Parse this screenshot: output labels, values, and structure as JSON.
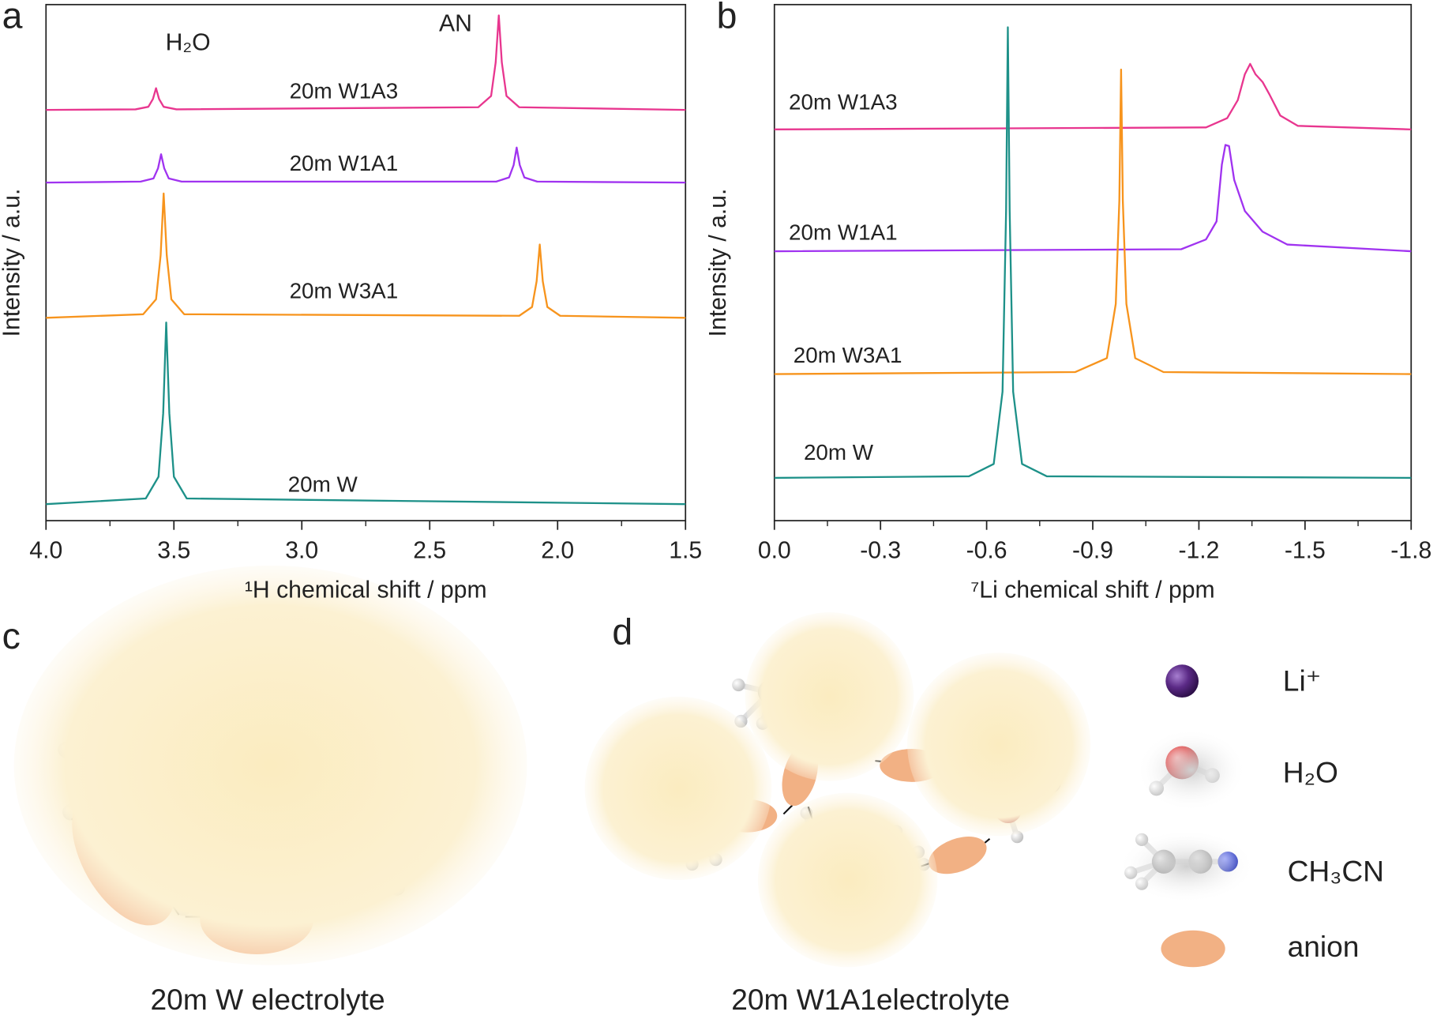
{
  "chart_data": [
    {
      "type": "line",
      "label": "a",
      "xlabel": "¹H chemical shift / ppm",
      "ylabel": "Intensity / a.u.",
      "xlim": [
        4.0,
        1.5
      ],
      "ylim": [
        0,
        100
      ],
      "xticks": [
        {
          "value": 4,
          "label": "4.0"
        },
        3.5,
        {
          "value": 3,
          "label": "3.0"
        },
        2.5,
        {
          "value": 2,
          "label": "2.0"
        },
        1.5
      ],
      "annotations": [
        "H₂O",
        "AN"
      ],
      "series": [
        {
          "name": "20m W1A3",
          "color": "#e8368f",
          "x": [
            4.0,
            3.65,
            3.6,
            3.582,
            3.57,
            3.558,
            3.54,
            3.49,
            2.31,
            2.26,
            2.242,
            2.23,
            2.218,
            2.2,
            2.15,
            1.5
          ],
          "values": [
            79.6,
            79.7,
            80.2,
            81.7,
            83.8,
            81.7,
            80.2,
            79.7,
            80.1,
            82.3,
            88.8,
            97.9,
            88.8,
            82.3,
            80.1,
            79.6
          ]
        },
        {
          "name": "20m W1A1",
          "color": "#a033f0",
          "x": [
            4.0,
            3.63,
            3.58,
            3.562,
            3.55,
            3.538,
            3.52,
            3.47,
            2.24,
            2.19,
            2.172,
            2.16,
            2.148,
            2.13,
            2.08,
            1.5
          ],
          "values": [
            65.5,
            65.7,
            66.3,
            68.3,
            71.0,
            68.3,
            66.3,
            65.7,
            65.7,
            66.5,
            68.9,
            72.3,
            68.9,
            66.5,
            65.7,
            65.5
          ]
        },
        {
          "name": "20m W3A1",
          "color": "#f7941d",
          "x": [
            4.0,
            3.62,
            3.57,
            3.552,
            3.54,
            3.528,
            3.51,
            3.46,
            2.15,
            2.1,
            2.082,
            2.07,
            2.058,
            2.04,
            1.99,
            1.5
          ],
          "values": [
            39.3,
            40.0,
            42.9,
            51.4,
            63.4,
            51.4,
            42.9,
            40.0,
            39.7,
            41.4,
            46.4,
            53.5,
            46.4,
            41.4,
            39.7,
            39.3
          ]
        },
        {
          "name": "20m W",
          "color": "#1e9189",
          "x": [
            4.0,
            3.61,
            3.56,
            3.542,
            3.53,
            3.518,
            3.5,
            3.45,
            1.5
          ],
          "values": [
            3.2,
            4.3,
            8.5,
            20.8,
            38.4,
            20.8,
            8.5,
            4.3,
            3.2
          ]
        }
      ]
    },
    {
      "type": "line",
      "label": "b",
      "xlabel": "⁷Li chemical shift / ppm",
      "ylabel": "Intensity / a.u.",
      "xlim": [
        0.0,
        -1.8
      ],
      "ylim": [
        0,
        100
      ],
      "xticks": [
        {
          "value": 0,
          "label": "0.0"
        },
        -0.3,
        -0.6,
        -0.9,
        -1.2,
        -1.5,
        -1.8
      ],
      "series": [
        {
          "name": "20m W1A3",
          "color": "#e8368f",
          "x": [
            0,
            -1.22,
            -1.28,
            -1.31,
            -1.33,
            -1.345,
            -1.36,
            -1.38,
            -1.4,
            -1.43,
            -1.48,
            -1.8
          ],
          "values": [
            75.8,
            76.2,
            78,
            81.5,
            86.5,
            88.5,
            86.5,
            85,
            82.5,
            78.5,
            76.5,
            75.8
          ]
        },
        {
          "name": "20m W1A1",
          "color": "#a033f0",
          "x": [
            0,
            -1.15,
            -1.22,
            -1.25,
            -1.265,
            -1.275,
            -1.285,
            -1.3,
            -1.33,
            -1.38,
            -1.45,
            -1.8
          ],
          "values": [
            52.2,
            52.6,
            54.5,
            58,
            69,
            72.8,
            72.6,
            66,
            60,
            56,
            53.5,
            52.2
          ]
        },
        {
          "name": "20m W3A1",
          "color": "#f7941d",
          "x": [
            0,
            -0.85,
            -0.94,
            -0.965,
            -0.975,
            -0.98,
            -0.985,
            -0.995,
            -1.02,
            -1.1,
            -1.8
          ],
          "values": [
            28.4,
            28.8,
            31.5,
            42,
            62,
            87.4,
            62,
            42,
            31.5,
            28.8,
            28.4
          ]
        },
        {
          "name": "20m W",
          "color": "#1e9189",
          "x": [
            0,
            -0.55,
            -0.62,
            -0.645,
            -0.655,
            -0.66,
            -0.665,
            -0.675,
            -0.7,
            -0.77,
            -1.8
          ],
          "values": [
            8.3,
            8.6,
            11,
            25,
            60,
            95.6,
            60,
            25,
            11,
            8.6,
            8.3
          ]
        }
      ]
    }
  ],
  "diagrams": [
    {
      "label": "c",
      "caption": "20m W electrolyte"
    },
    {
      "label": "d",
      "caption": "20m W1A1electrolyte",
      "legend": [
        "Li⁺",
        "H₂O",
        "CH₃CN",
        "anion"
      ]
    }
  ]
}
